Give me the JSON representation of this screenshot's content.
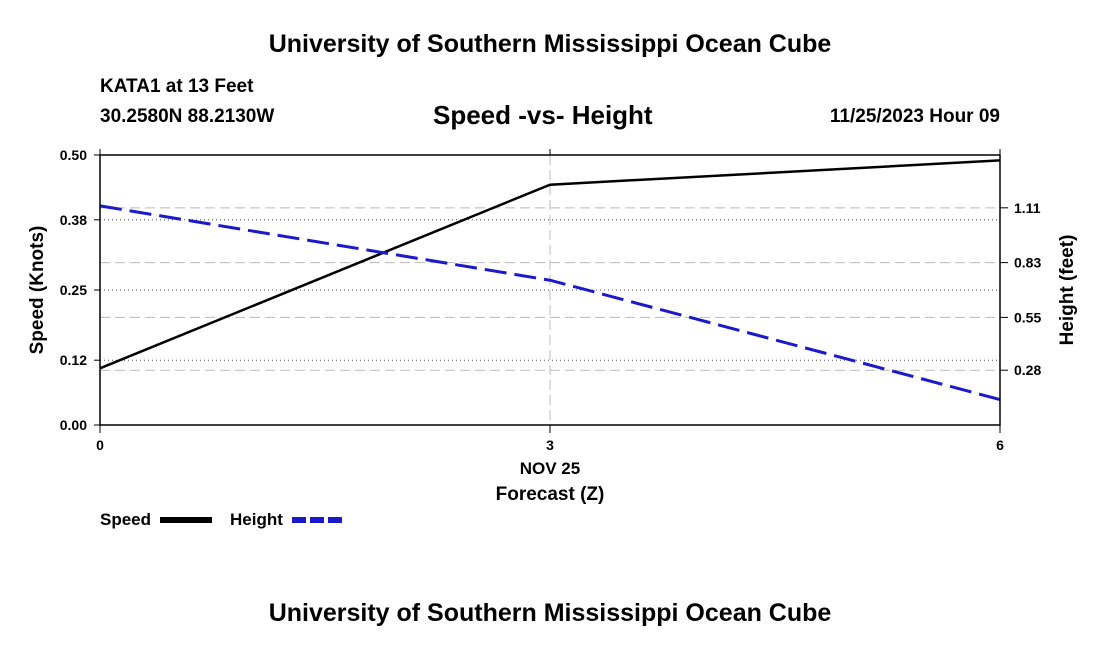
{
  "header": {
    "title": "University of Southern Mississippi Ocean Cube",
    "station": "KATA1 at 13 Feet",
    "coordinates": "30.2580N  88.2130W",
    "subtitle": "Speed -vs- Height",
    "datetime": "11/25/2023 Hour 09"
  },
  "footer": {
    "title": "University of Southern Mississippi Ocean Cube"
  },
  "chart_data": {
    "type": "line",
    "title": "Speed -vs- Height",
    "xlabel": "Forecast (Z)",
    "x_sublabel": "NOV 25",
    "ylabel": "Speed (Knots)",
    "y2label": "Height (feet)",
    "x": [
      0,
      3,
      6
    ],
    "xlim": [
      0,
      6
    ],
    "x_ticks": [
      "0",
      "3",
      "6"
    ],
    "ylim": [
      0,
      0.5
    ],
    "y_ticks": [
      "0.00",
      "0.12",
      "0.25",
      "0.38",
      "0.50"
    ],
    "y2lim": [
      0,
      1.38
    ],
    "y2_ticks": [
      "0.28",
      "0.55",
      "0.83",
      "1.11"
    ],
    "series": [
      {
        "name": "Speed",
        "axis": "left",
        "color": "#000000",
        "style": "solid",
        "values": [
          0.105,
          0.445,
          0.49
        ]
      },
      {
        "name": "Height",
        "axis": "right",
        "color": "#1a1acc",
        "style": "dashed",
        "values": [
          1.12,
          0.74,
          0.13
        ]
      }
    ],
    "legend": [
      "Speed",
      "Height"
    ],
    "grid": true
  }
}
